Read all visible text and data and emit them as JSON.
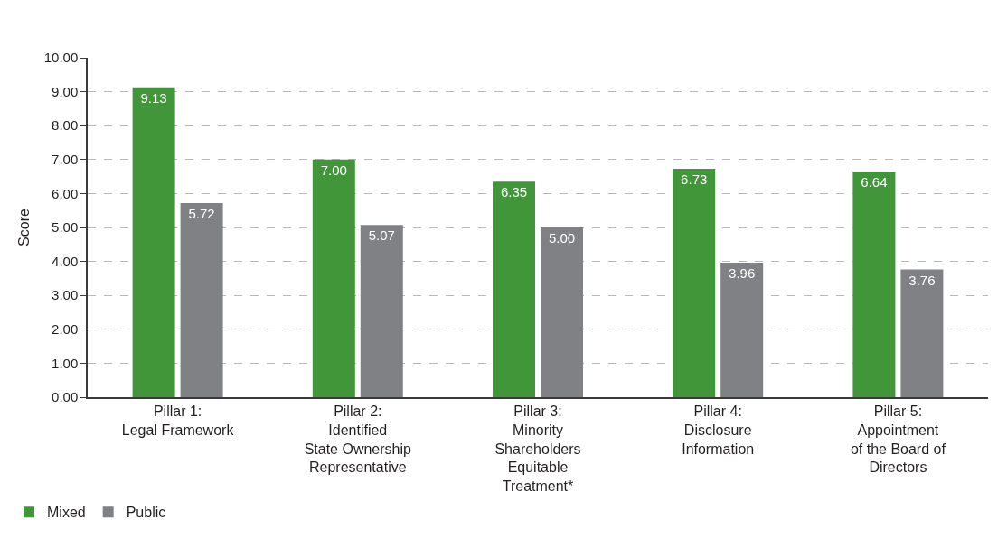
{
  "chart_data": {
    "type": "bar",
    "ylabel": "Score",
    "categories": [
      "Pillar 1:\nLegal Framework",
      "Pillar 2:\nIdentified\nState Ownership\nRepresentative",
      "Pillar 3:\nMinority\nShareholders\nEquitable\nTreatment*",
      "Pillar 4:\nDisclosure\nInformation",
      "Pillar 5:\nAppointment\nof the Board of\nDirectors"
    ],
    "series": [
      {
        "name": "Mixed",
        "color": "#41963a",
        "values": [
          9.13,
          7.0,
          6.35,
          6.73,
          6.64
        ],
        "value_labels": [
          "9.13",
          "7.00",
          "6.35",
          "6.73",
          "6.64"
        ]
      },
      {
        "name": "Public",
        "color": "#808184",
        "values": [
          5.72,
          5.07,
          5.0,
          3.96,
          3.76
        ],
        "value_labels": [
          "5.72",
          "5.07",
          "5.00",
          "3.96",
          "3.76"
        ]
      }
    ],
    "ylim": [
      0,
      10
    ],
    "yticks": [
      {
        "value": 0,
        "label": "0.00"
      },
      {
        "value": 1,
        "label": "1.00"
      },
      {
        "value": 2,
        "label": "2.00"
      },
      {
        "value": 3,
        "label": "3.00"
      },
      {
        "value": 4,
        "label": "4.00"
      },
      {
        "value": 5,
        "label": "5.00"
      },
      {
        "value": 6,
        "label": "6.00"
      },
      {
        "value": 7,
        "label": "7.00"
      },
      {
        "value": 8,
        "label": "8.00"
      },
      {
        "value": 9,
        "label": "9.00"
      },
      {
        "value": 10,
        "label": "10.00"
      }
    ],
    "grid": "y",
    "legend": "bottom left"
  }
}
